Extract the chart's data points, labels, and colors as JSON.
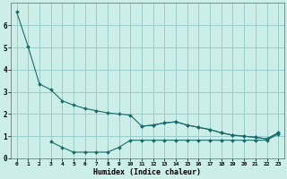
{
  "xlabel": "Humidex (Indice chaleur)",
  "bg_color": "#cceee8",
  "grid_color": "#99cccc",
  "line_color": "#1a6b6b",
  "x_all": [
    0,
    1,
    2,
    3,
    4,
    5,
    6,
    7,
    8,
    9,
    10,
    11,
    12,
    13,
    14,
    15,
    16,
    17,
    18,
    19,
    20,
    21,
    22,
    23
  ],
  "y_upper": [
    6.6,
    5.05,
    3.35,
    3.1,
    2.6,
    2.4,
    2.25,
    2.15,
    2.05,
    2.0,
    1.95,
    1.45,
    1.5,
    1.6,
    1.65,
    1.5,
    1.4,
    1.3,
    1.15,
    1.05,
    1.0,
    0.95,
    0.88,
    1.15
  ],
  "y_mid": [
    null,
    null,
    null,
    null,
    null,
    null,
    null,
    null,
    null,
    null,
    null,
    1.45,
    1.5,
    1.6,
    1.65,
    1.5,
    1.4,
    1.3,
    1.15,
    1.05,
    1.0,
    0.95,
    0.88,
    1.15
  ],
  "y_lower": [
    null,
    null,
    null,
    0.75,
    0.5,
    0.28,
    0.28,
    0.28,
    0.28,
    0.5,
    0.82,
    0.82,
    0.82,
    0.82,
    0.82,
    0.82,
    0.82,
    0.82,
    0.82,
    0.82,
    0.82,
    0.82,
    0.82,
    1.1
  ],
  "ylim": [
    0,
    7
  ],
  "xlim": [
    -0.5,
    23.5
  ],
  "yticks": [
    0,
    1,
    2,
    3,
    4,
    5,
    6
  ],
  "xticks": [
    0,
    1,
    2,
    3,
    4,
    5,
    6,
    7,
    8,
    9,
    10,
    11,
    12,
    13,
    14,
    15,
    16,
    17,
    18,
    19,
    20,
    21,
    22,
    23
  ]
}
